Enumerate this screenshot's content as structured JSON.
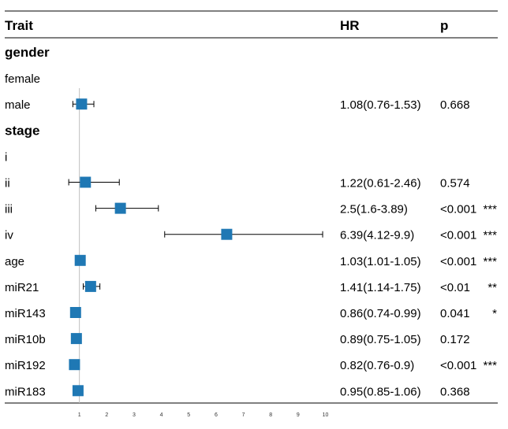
{
  "chart_data": {
    "type": "forest",
    "columns": {
      "trait": "Trait",
      "hr": "HR",
      "p": "p"
    },
    "xlim": [
      0,
      10.5
    ],
    "xticks": [
      "1",
      "2",
      "3",
      "4",
      "5",
      "6",
      "7",
      "8",
      "9",
      "10"
    ],
    "reference_line": 1,
    "colors": {
      "box": "#1f78b4",
      "ref_line": "#bfbfbf",
      "ci": "#000000"
    },
    "rows": [
      {
        "trait": "gender",
        "group": true
      },
      {
        "trait": "female",
        "group": false
      },
      {
        "trait": "male",
        "hr": 1.08,
        "lo": 0.76,
        "hi": 1.53,
        "hr_text": "1.08(0.76-1.53)",
        "p": "0.668",
        "sig": ""
      },
      {
        "trait": "stage",
        "group": true
      },
      {
        "trait": "i",
        "group": false
      },
      {
        "trait": "ii",
        "hr": 1.22,
        "lo": 0.61,
        "hi": 2.46,
        "hr_text": "1.22(0.61-2.46)",
        "p": "0.574",
        "sig": ""
      },
      {
        "trait": "iii",
        "hr": 2.5,
        "lo": 1.6,
        "hi": 3.89,
        "hr_text": "2.5(1.6-3.89)",
        "p": "<0.001",
        "sig": "***"
      },
      {
        "trait": "iv",
        "hr": 6.39,
        "lo": 4.12,
        "hi": 9.9,
        "hr_text": "6.39(4.12-9.9)",
        "p": "<0.001",
        "sig": "***"
      },
      {
        "trait": "age",
        "hr": 1.03,
        "lo": 1.01,
        "hi": 1.05,
        "hr_text": "1.03(1.01-1.05)",
        "p": "<0.001",
        "sig": "***"
      },
      {
        "trait": "miR21",
        "hr": 1.41,
        "lo": 1.14,
        "hi": 1.75,
        "hr_text": "1.41(1.14-1.75)",
        "p": "<0.01",
        "sig": "**"
      },
      {
        "trait": "miR143",
        "hr": 0.86,
        "lo": 0.74,
        "hi": 0.99,
        "hr_text": "0.86(0.74-0.99)",
        "p": "0.041",
        "sig": "*"
      },
      {
        "trait": "miR10b",
        "hr": 0.89,
        "lo": 0.75,
        "hi": 1.05,
        "hr_text": "0.89(0.75-1.05)",
        "p": "0.172",
        "sig": ""
      },
      {
        "trait": "miR192",
        "hr": 0.82,
        "lo": 0.76,
        "hi": 0.9,
        "hr_text": "0.82(0.76-0.9)",
        "p": "<0.001",
        "sig": "***"
      },
      {
        "trait": "miR183",
        "hr": 0.95,
        "lo": 0.85,
        "hi": 1.06,
        "hr_text": "0.95(0.85-1.06)",
        "p": "0.368",
        "sig": ""
      }
    ]
  }
}
